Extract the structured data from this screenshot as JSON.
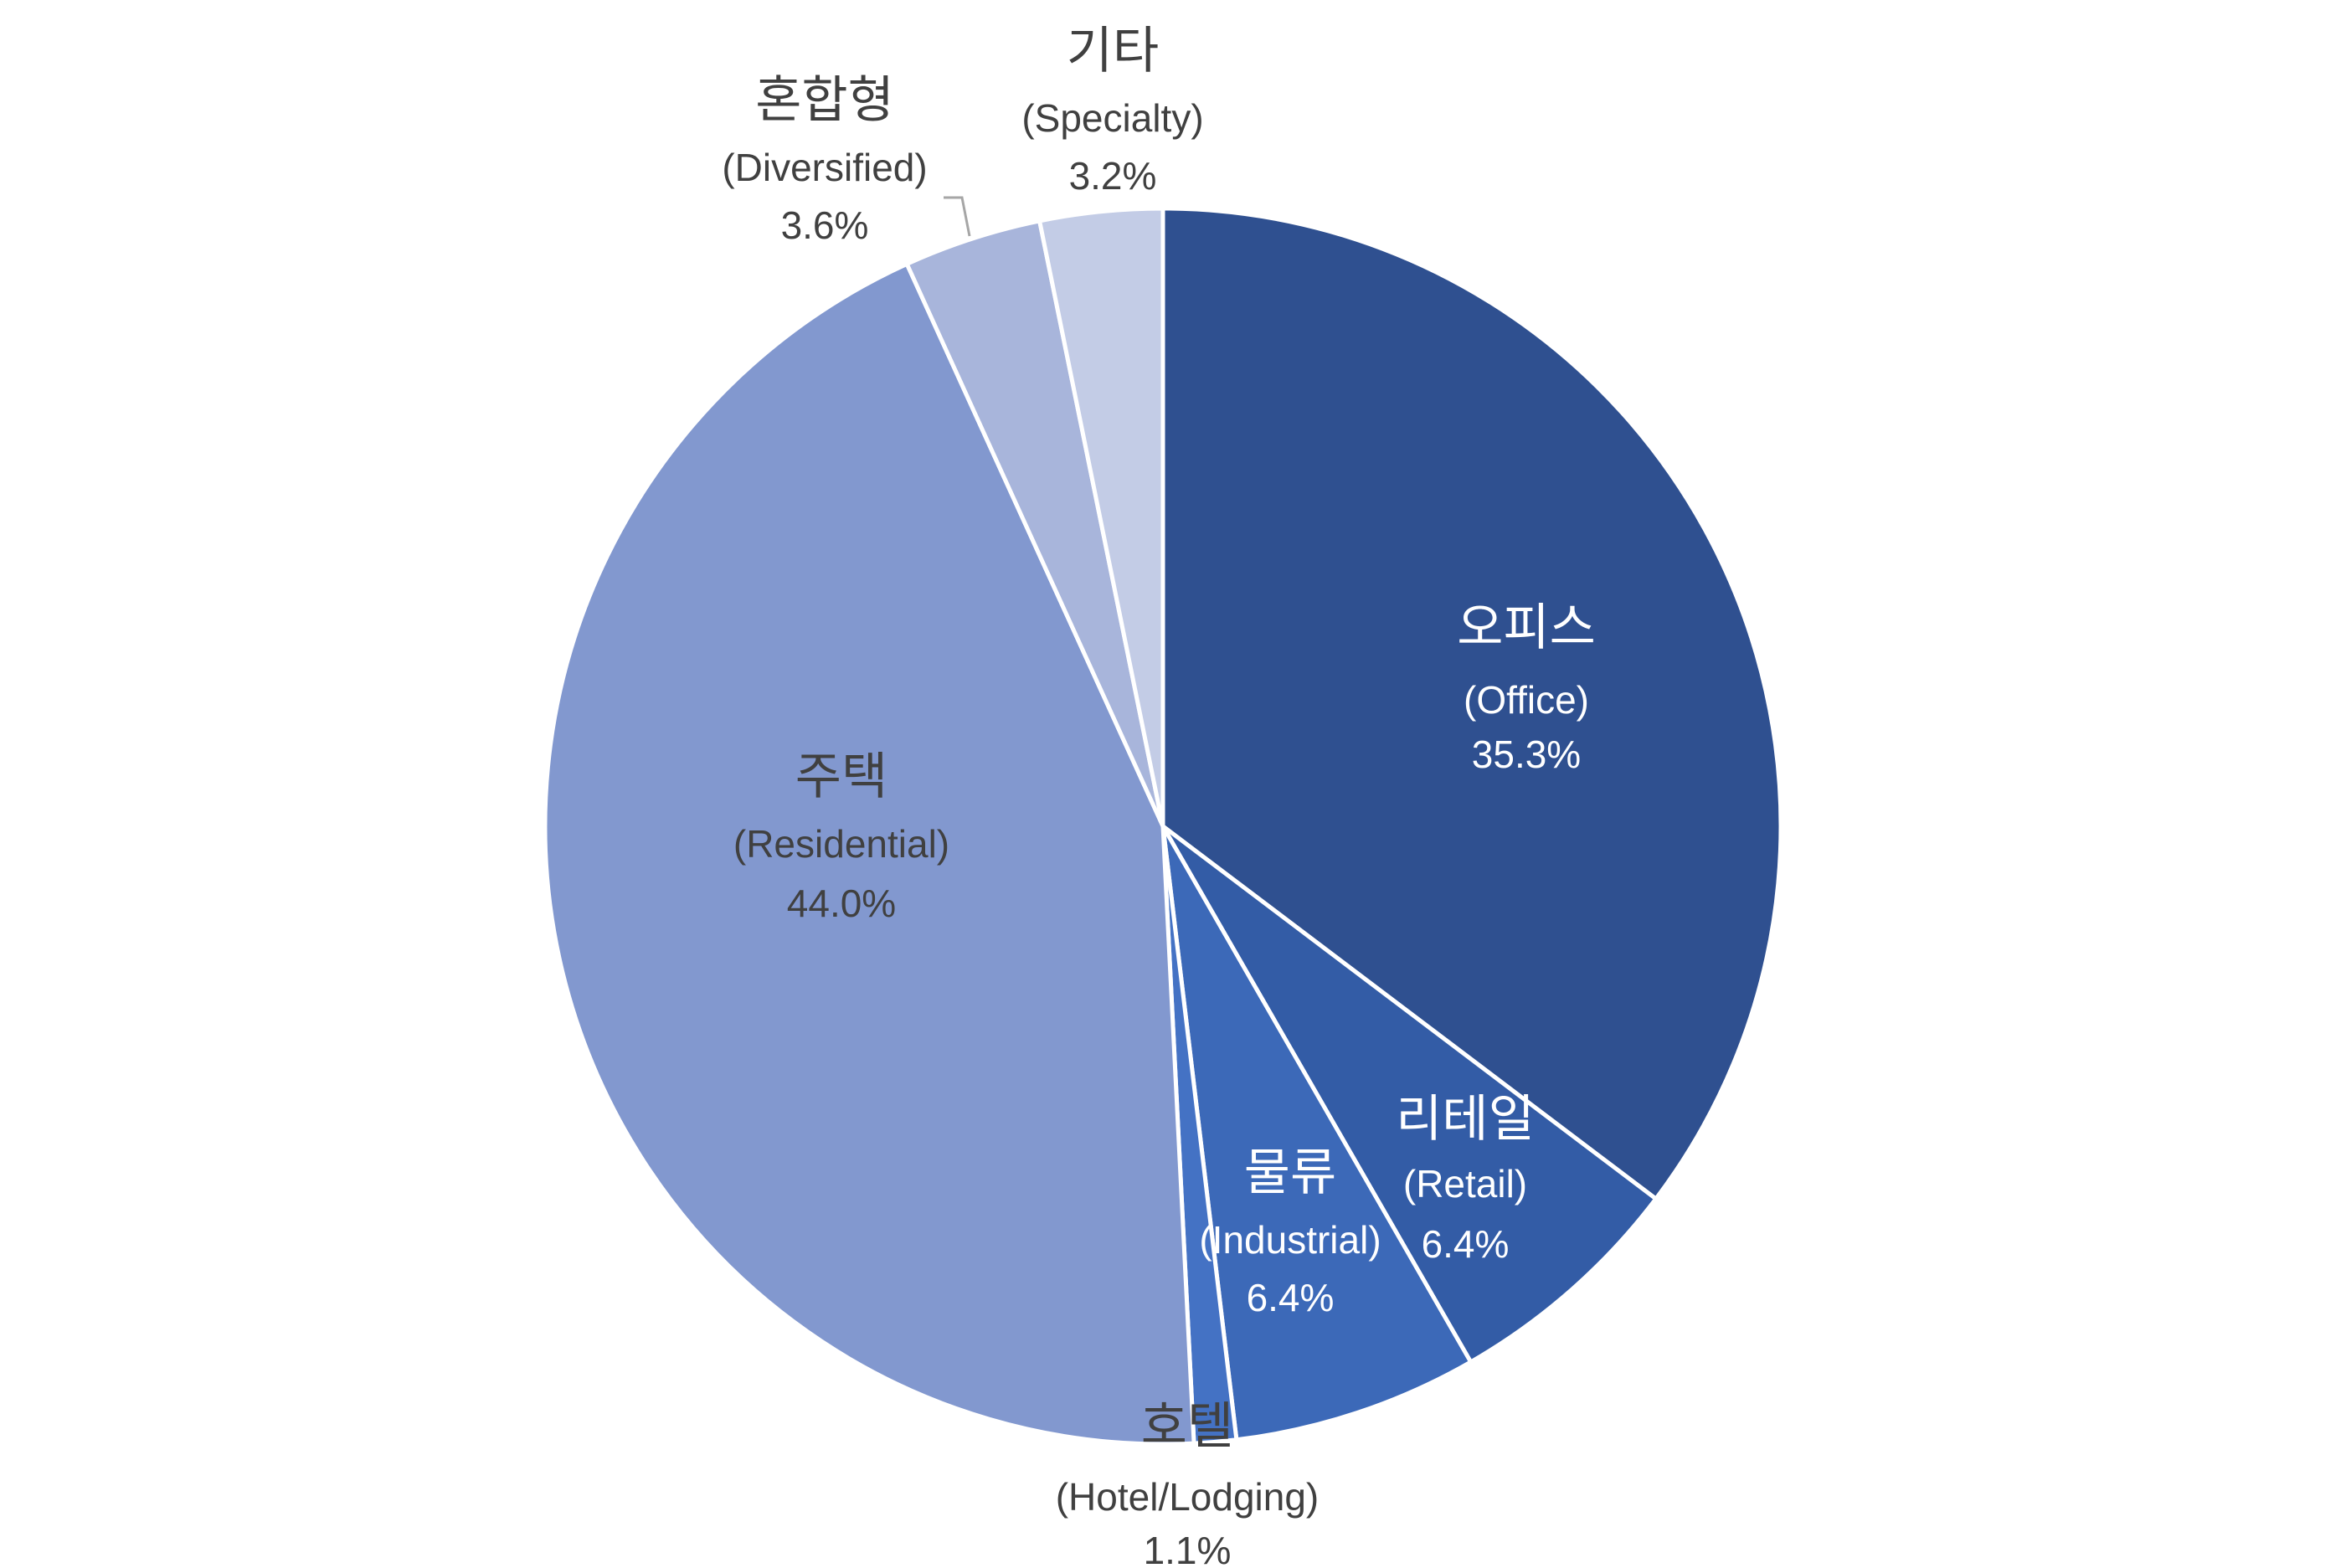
{
  "chart_data": {
    "type": "pie",
    "categories": [
      "오피스",
      "리테일",
      "물류",
      "호텔",
      "주택",
      "혼합형",
      "기타"
    ],
    "category_notes": [
      "(Office)",
      "(Retail)",
      "(Industrial)",
      "(Hotel/Lodging)",
      "(Residential)",
      "(Diversified)",
      "(Specialty)"
    ],
    "values": [
      35.3,
      6.4,
      6.4,
      1.1,
      44.0,
      3.6,
      3.2
    ],
    "value_labels": [
      "35.3%",
      "6.4%",
      "6.4%",
      "1.1%",
      "44.0%",
      "3.6%",
      "3.2%"
    ],
    "colors": [
      "#2f5090",
      "#335ca6",
      "#3c69b8",
      "#4472c4",
      "#8298cf",
      "#a8b5db",
      "#c3cce6"
    ]
  }
}
